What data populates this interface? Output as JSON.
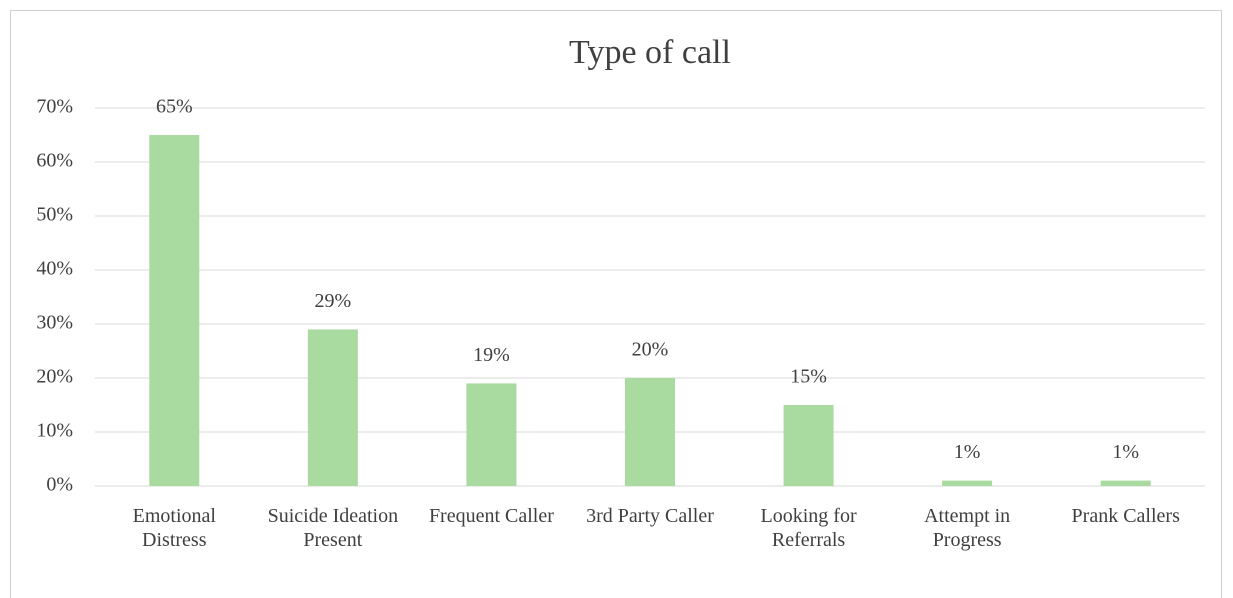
{
  "chart_data": {
    "type": "bar",
    "title": "Type of call",
    "categories": [
      "Emotional Distress",
      "Suicide Ideation Present",
      "Frequent Caller",
      "3rd Party Caller",
      "Looking for Referrals",
      "Attempt in Progress",
      "Prank Callers"
    ],
    "values": [
      65,
      29,
      19,
      20,
      15,
      1,
      1
    ],
    "value_labels": [
      "65%",
      "29%",
      "19%",
      "20%",
      "15%",
      "1%",
      "1%"
    ],
    "color": "#a9dba0",
    "ylim": [
      0,
      70
    ],
    "yticks": [
      {
        "value": 0,
        "label": "0%"
      },
      {
        "value": 10,
        "label": "10%"
      },
      {
        "value": 20,
        "label": "20%"
      },
      {
        "value": 30,
        "label": "30%"
      },
      {
        "value": 40,
        "label": "40%"
      },
      {
        "value": 50,
        "label": "50%"
      },
      {
        "value": 60,
        "label": "60%"
      },
      {
        "value": 70,
        "label": "70%"
      }
    ],
    "grid": true
  }
}
